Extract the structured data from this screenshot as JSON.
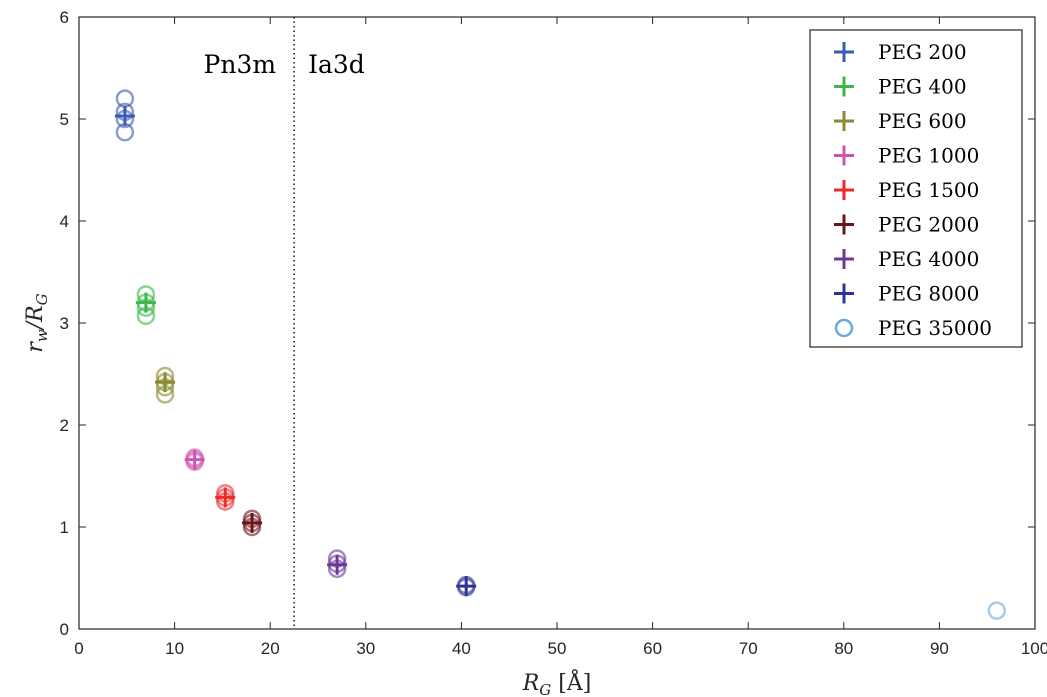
{
  "chart_data": {
    "type": "scatter",
    "title": "",
    "xlabel": "R_G [Å]",
    "ylabel": "r_w/R_G",
    "xlim": [
      0,
      100
    ],
    "ylim": [
      0,
      6
    ],
    "xticks": [
      0,
      10,
      20,
      30,
      40,
      50,
      60,
      70,
      80,
      90,
      100
    ],
    "yticks": [
      0,
      1,
      2,
      3,
      4,
      5,
      6
    ],
    "grid": false,
    "legend_position": "top-right",
    "divider_x": 22.5,
    "region_labels": [
      "Pn3m",
      "Ia3d"
    ],
    "series": [
      {
        "name": "PEG 200",
        "color": "#3a5bb0",
        "x": 4.8,
        "cross_y": 5.03,
        "circle_y": [
          5.2,
          5.07,
          5.0,
          4.87
        ]
      },
      {
        "name": "PEG 400",
        "color": "#3cb84a",
        "x": 7.0,
        "cross_y": 3.2,
        "circle_y": [
          3.28,
          3.2,
          3.15,
          3.07
        ]
      },
      {
        "name": "PEG 600",
        "color": "#8a8a30",
        "x": 9.0,
        "cross_y": 2.42,
        "circle_y": [
          2.48,
          2.42,
          2.37,
          2.3
        ]
      },
      {
        "name": "PEG 1000",
        "color": "#cc55b0",
        "x": 12.1,
        "cross_y": 1.66,
        "circle_y": [
          1.68,
          1.66,
          1.64
        ]
      },
      {
        "name": "PEG 1500",
        "color": "#ee2a2a",
        "x": 15.3,
        "cross_y": 1.29,
        "circle_y": [
          1.33,
          1.29,
          1.25
        ]
      },
      {
        "name": "PEG 2000",
        "color": "#6b1418",
        "x": 18.1,
        "cross_y": 1.04,
        "circle_y": [
          1.08,
          1.04,
          1.0
        ]
      },
      {
        "name": "PEG 4000",
        "color": "#6a3a9a",
        "x": 27.0,
        "cross_y": 0.63,
        "circle_y": [
          0.69,
          0.64,
          0.59
        ]
      },
      {
        "name": "PEG 8000",
        "color": "#2c3496",
        "x": 40.5,
        "cross_y": 0.42,
        "circle_y": [
          0.43,
          0.41
        ]
      },
      {
        "name": "PEG 35000",
        "color": "#6aaade",
        "x": 96.0,
        "cross_y": null,
        "circle_y": [
          0.18
        ]
      }
    ]
  }
}
